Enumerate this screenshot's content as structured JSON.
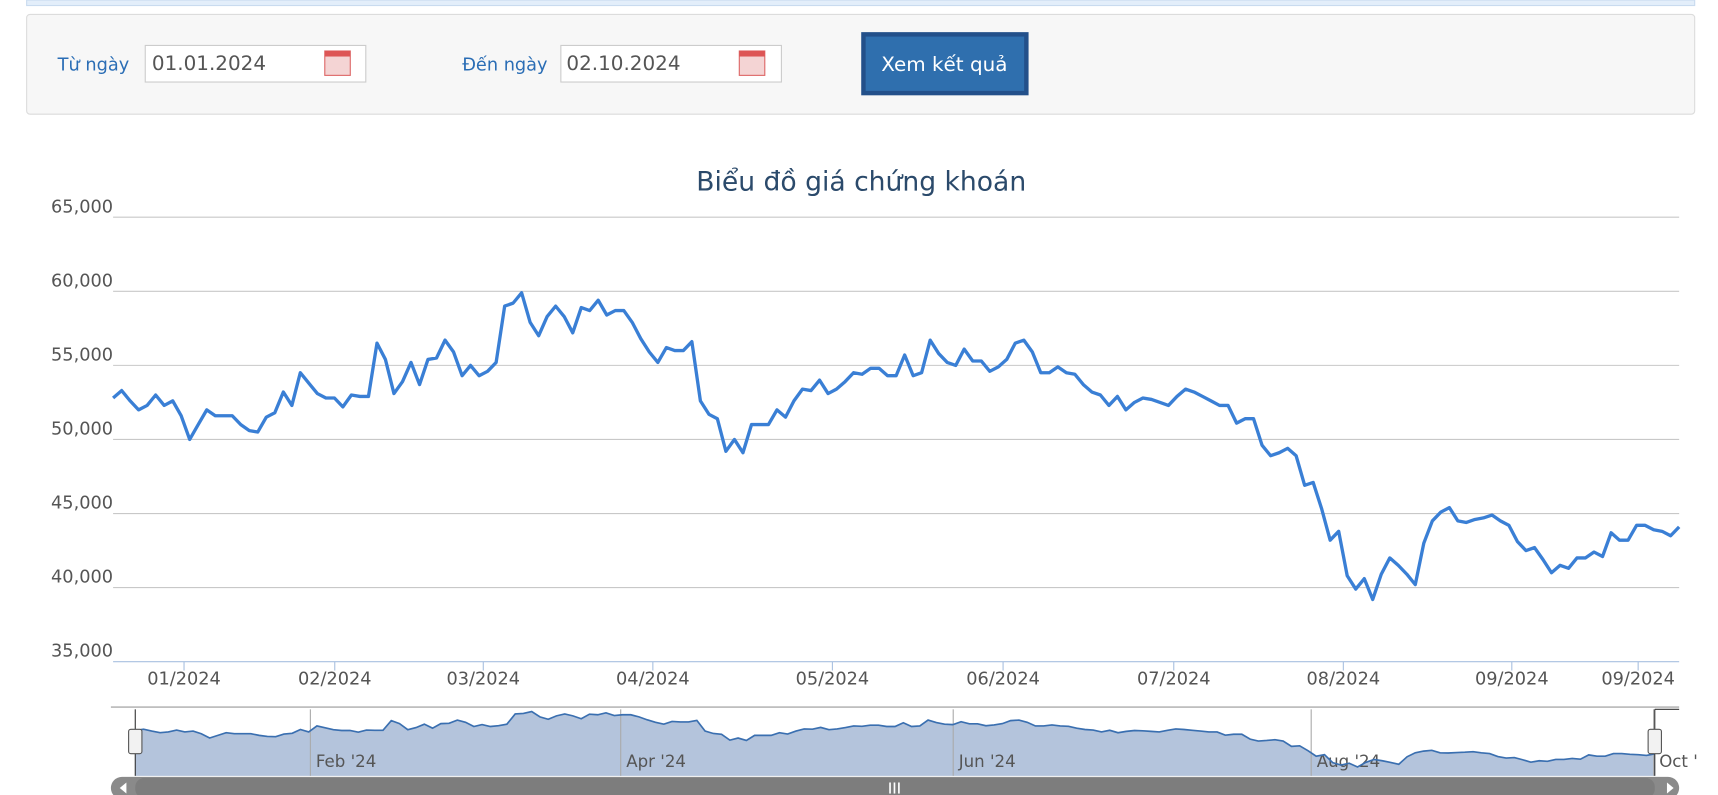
{
  "form": {
    "from_label": "Từ ngày",
    "from_value": "01.01.2024",
    "to_label": "Đến ngày",
    "to_value": "02.10.2024",
    "button": "Xem kết quả"
  },
  "chart_data": {
    "type": "line",
    "title": "Biểu đồ giá chứng khoán",
    "color": "#3a7fd5",
    "grid": true,
    "ylim": [
      35000,
      65000
    ],
    "yticks": [
      {
        "value": 35000,
        "label": "35,000"
      },
      {
        "value": 40000,
        "label": "40,000"
      },
      {
        "value": 45000,
        "label": "45,000"
      },
      {
        "value": 50000,
        "label": "50,000"
      },
      {
        "value": 55000,
        "label": "55,000"
      },
      {
        "value": 60000,
        "label": "60,000"
      },
      {
        "value": 65000,
        "label": "65,000"
      }
    ],
    "x_labels": [
      "01/2024",
      "02/2024",
      "03/2024",
      "04/2024",
      "05/2024",
      "06/2024",
      "07/2024",
      "08/2024",
      "09/2024",
      "09/2024"
    ],
    "navigator_labels": [
      "Feb '24",
      "Apr '24",
      "Jun '24",
      "Aug '24",
      "Oct '"
    ],
    "values": [
      52800,
      53300,
      52600,
      52000,
      52300,
      53000,
      52300,
      52600,
      51600,
      50000,
      51000,
      52000,
      51600,
      51600,
      51600,
      51000,
      50600,
      50500,
      51500,
      51800,
      53200,
      52300,
      54500,
      53800,
      53100,
      52800,
      52800,
      52200,
      53000,
      52900,
      52900,
      56500,
      55400,
      53100,
      53900,
      55200,
      53700,
      55400,
      55500,
      56700,
      55900,
      54300,
      55000,
      54300,
      54600,
      55200,
      59000,
      59200,
      59900,
      57900,
      57000,
      58300,
      59000,
      58300,
      57200,
      58900,
      58700,
      59400,
      58400,
      58700,
      58700,
      57900,
      56800,
      55900,
      55200,
      56200,
      56000,
      56000,
      56600,
      52600,
      51700,
      51400,
      49200,
      50000,
      49100,
      51000,
      51000,
      51000,
      52000,
      51500,
      52600,
      53400,
      53300,
      54000,
      53100,
      53400,
      53900,
      54500,
      54400,
      54800,
      54800,
      54300,
      54300,
      55700,
      54300,
      54500,
      56700,
      55800,
      55200,
      55000,
      56100,
      55300,
      55300,
      54600,
      54900,
      55400,
      56500,
      56700,
      55900,
      54500,
      54500,
      54900,
      54500,
      54400,
      53700,
      53200,
      53000,
      52300,
      52900,
      52000,
      52500,
      52800,
      52700,
      52500,
      52300,
      52900,
      53400,
      53200,
      52900,
      52600,
      52300,
      52300,
      51100,
      51400,
      51400,
      49600,
      48900,
      49100,
      49400,
      48900,
      46900,
      47100,
      45300,
      43200,
      43800,
      40800,
      39900,
      40600,
      39200,
      40900,
      42000,
      41500,
      40900,
      40200,
      43000,
      44500,
      45100,
      45400,
      44500,
      44400,
      44600,
      44700,
      44900,
      44500,
      44200,
      43100,
      42500,
      42700,
      41900,
      41000,
      41500,
      41300,
      42000,
      42000,
      42400,
      42100,
      43700,
      43200,
      43200,
      44200,
      44200,
      43900,
      43800,
      43500,
      44100
    ]
  }
}
